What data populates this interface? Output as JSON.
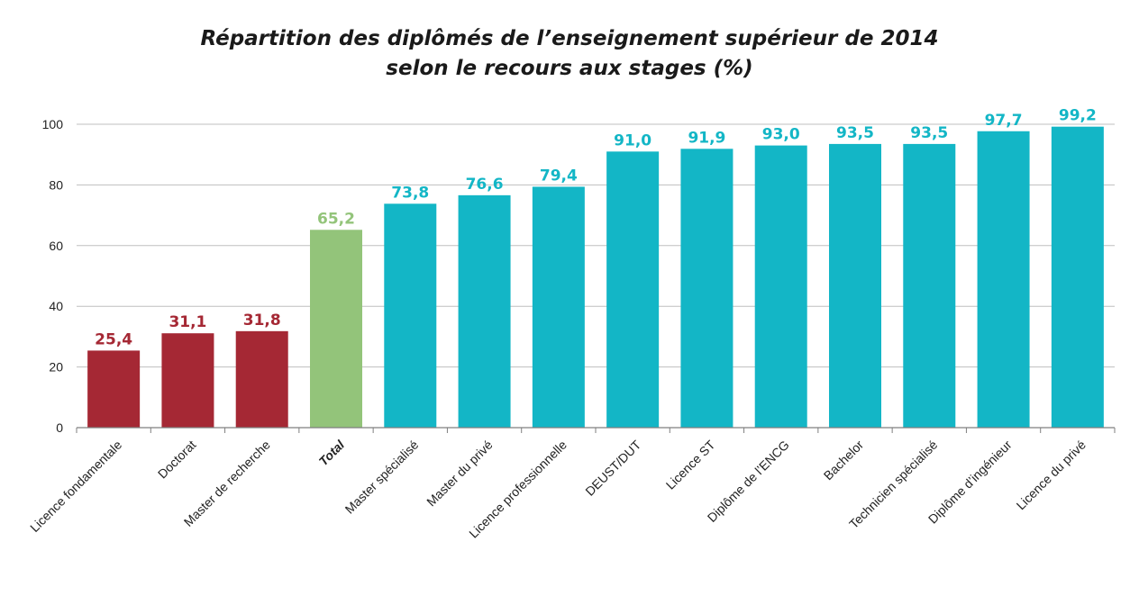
{
  "chart_data": {
    "type": "bar",
    "title": "Répartition des diplômés de l’enseignement supérieur de 2014",
    "subtitle": "selon le recours aux stages (%)",
    "xlabel": "",
    "ylabel": "",
    "ylim": [
      0,
      100
    ],
    "yticks": [
      "0",
      "20",
      "40",
      "60",
      "80",
      "100"
    ],
    "grid": true,
    "categories": [
      "Licence fondamentale",
      "Doctorat",
      "Master de recherche",
      "Total",
      "Master spécialisé",
      "Master du privé",
      "Licence professionnelle",
      "DEUST/DUT",
      "Licence ST",
      "Diplôme de l’ENCG",
      "Bachelor",
      "Technicien spécialisé",
      "Diplôme d’ingénieur",
      "Licence du privé"
    ],
    "values": [
      25.4,
      31.1,
      31.8,
      65.2,
      73.8,
      76.6,
      79.4,
      91.0,
      91.9,
      93.0,
      93.5,
      93.5,
      97.7,
      99.2
    ],
    "value_labels": [
      "25,4",
      "31,1",
      "31,8",
      "65,2",
      "73,8",
      "76,6",
      "79,4",
      "91,0",
      "91,9",
      "93,0",
      "93,5",
      "93,5",
      "97,7",
      "99,2"
    ],
    "bar_groups": [
      "low",
      "low",
      "low",
      "total",
      "high",
      "high",
      "high",
      "high",
      "high",
      "high",
      "high",
      "high",
      "high",
      "high"
    ],
    "colors": {
      "low": "#A52834",
      "total": "#93C47A",
      "high": "#13B6C6",
      "grid": "#bfbfbf",
      "axis": "#7f7f7f"
    }
  }
}
